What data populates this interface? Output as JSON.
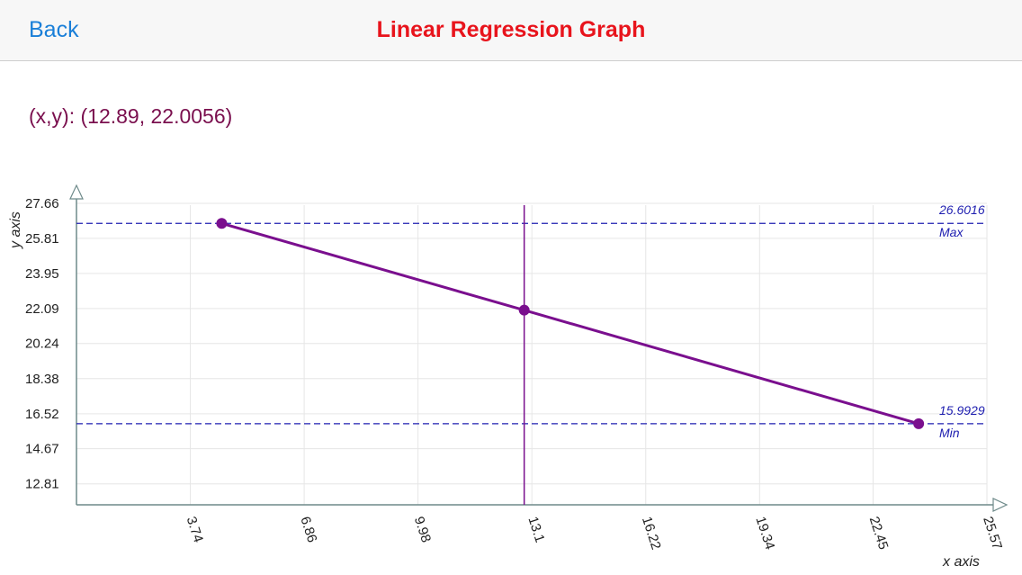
{
  "header": {
    "back_label": "Back",
    "title": "Linear Regression Graph"
  },
  "readout": {
    "text": "(x,y): (12.89, 22.0056)"
  },
  "colors": {
    "title": "#e8141c",
    "back": "#1a7fd8",
    "readout": "#7a0f4e",
    "series": "#7a0f8e",
    "reference": "#1f1fb0",
    "grid": "#e6e6e6",
    "axis": "#6e8a8a"
  },
  "chart_data": {
    "type": "line",
    "xlabel": "x axis",
    "ylabel": "y axis",
    "xlim": [
      0.62,
      25.57
    ],
    "ylim": [
      11.7,
      27.66
    ],
    "x_ticks": [
      "3.74",
      "6.86",
      "9.98",
      "13.1",
      "16.22",
      "19.34",
      "22.45",
      "25.57"
    ],
    "y_ticks": [
      "27.66",
      "25.81",
      "23.95",
      "22.09",
      "20.24",
      "18.38",
      "16.52",
      "14.67",
      "12.81"
    ],
    "grid": true,
    "series": [
      {
        "points": [
          {
            "x": 4.6,
            "y": 26.6016
          },
          {
            "x": 12.89,
            "y": 22.0056
          },
          {
            "x": 23.7,
            "y": 15.9929
          }
        ]
      }
    ],
    "reference_lines": [
      {
        "value": 26.6016,
        "value_label": "26.6016",
        "label": "Max"
      },
      {
        "value": 15.9929,
        "value_label": "15.9929",
        "label": "Min"
      }
    ],
    "cursor": {
      "x": 12.89,
      "y": 22.0056
    }
  }
}
